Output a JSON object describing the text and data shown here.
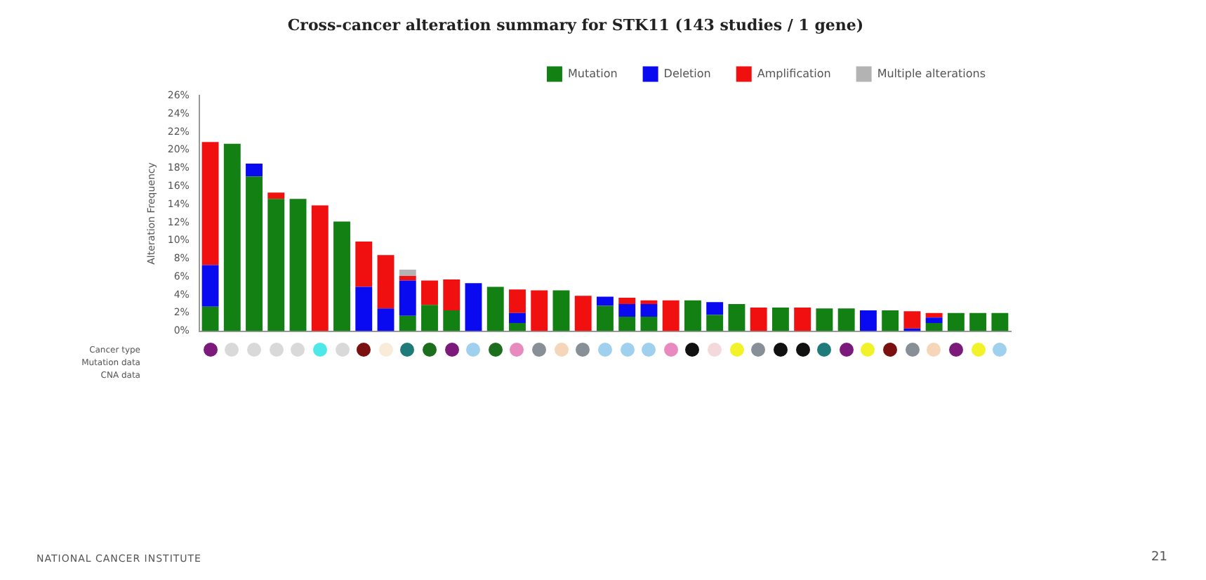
{
  "chart_data": {
    "type": "bar",
    "title": "Cross-cancer alteration summary for STK11 (143 studies / 1 gene)",
    "ylabel": "Alteration Frequency",
    "categories": [
      null,
      null,
      null,
      null,
      null,
      null,
      null,
      null,
      null,
      null,
      null,
      null,
      null,
      null,
      null,
      null,
      null,
      null,
      null,
      null,
      null,
      null,
      null,
      null,
      null,
      null,
      null,
      null,
      null,
      null,
      null,
      null,
      null,
      null,
      null,
      null,
      null
    ],
    "series": [
      {
        "name": "Mutation",
        "color": "#138013",
        "values": [
          2.7,
          20.7,
          17.1,
          14.6,
          14.6,
          0,
          12.1,
          0,
          0,
          1.7,
          2.9,
          2.3,
          0,
          4.9,
          0.9,
          0,
          4.5,
          0,
          2.8,
          1.6,
          1.6,
          0,
          3.4,
          1.8,
          3.0,
          0,
          2.6,
          0,
          2.5,
          2.5,
          0,
          2.3,
          0,
          0.9,
          2.0,
          2.0,
          2.0
        ]
      },
      {
        "name": "Deletion",
        "color": "#0a0af0",
        "values": [
          4.6,
          0,
          1.4,
          0,
          0,
          0,
          0,
          4.9,
          2.5,
          3.9,
          0,
          0,
          5.3,
          0,
          1.1,
          0,
          0,
          0,
          1.0,
          1.4,
          1.4,
          0,
          0,
          1.4,
          0,
          0,
          0,
          0,
          0,
          0,
          2.3,
          0,
          0.3,
          0.6,
          0,
          0,
          0
        ]
      },
      {
        "name": "Amplification",
        "color": "#f01010",
        "values": [
          13.6,
          0,
          0,
          0.7,
          0,
          13.9,
          0,
          5.0,
          5.9,
          0.5,
          2.7,
          3.4,
          0,
          0,
          2.6,
          4.5,
          0,
          3.9,
          0,
          0.7,
          0.4,
          3.4,
          0,
          0,
          0,
          2.6,
          0,
          2.6,
          0,
          0,
          0,
          0,
          1.9,
          0.5,
          0,
          0,
          0
        ]
      },
      {
        "name": "Multiple alterations",
        "color": "#b3b3b3",
        "values": [
          0,
          0,
          0,
          0,
          0,
          0,
          0,
          0,
          0,
          0.7,
          0,
          0,
          0,
          0,
          0,
          0,
          0,
          0,
          0,
          0,
          0,
          0,
          0,
          0,
          0,
          0,
          0,
          0,
          0,
          0,
          0,
          0,
          0,
          0,
          0,
          0,
          0
        ]
      }
    ],
    "stacked": true,
    "ylim": [
      0,
      26
    ],
    "yticks": [
      {
        "value": 0,
        "label": "0%"
      },
      {
        "value": 2,
        "label": "2%"
      },
      {
        "value": 4,
        "label": "4%"
      },
      {
        "value": 6,
        "label": "6%"
      },
      {
        "value": 8,
        "label": "8%"
      },
      {
        "value": 10,
        "label": "10%"
      },
      {
        "value": 12,
        "label": "12%"
      },
      {
        "value": 14,
        "label": "14%"
      },
      {
        "value": 16,
        "label": "16%"
      },
      {
        "value": 18,
        "label": "18%"
      },
      {
        "value": 20,
        "label": "20%"
      },
      {
        "value": 22,
        "label": "22%"
      },
      {
        "value": 24,
        "label": "24%"
      },
      {
        "value": 26,
        "label": "26%"
      }
    ],
    "grid": false,
    "legend": "top right",
    "tick_labels": "y",
    "annotations": [
      "Cancer type",
      "Mutation data",
      "CNA data",
      "NATIONAL CANCER INSTITUTE",
      "21"
    ]
  }
}
